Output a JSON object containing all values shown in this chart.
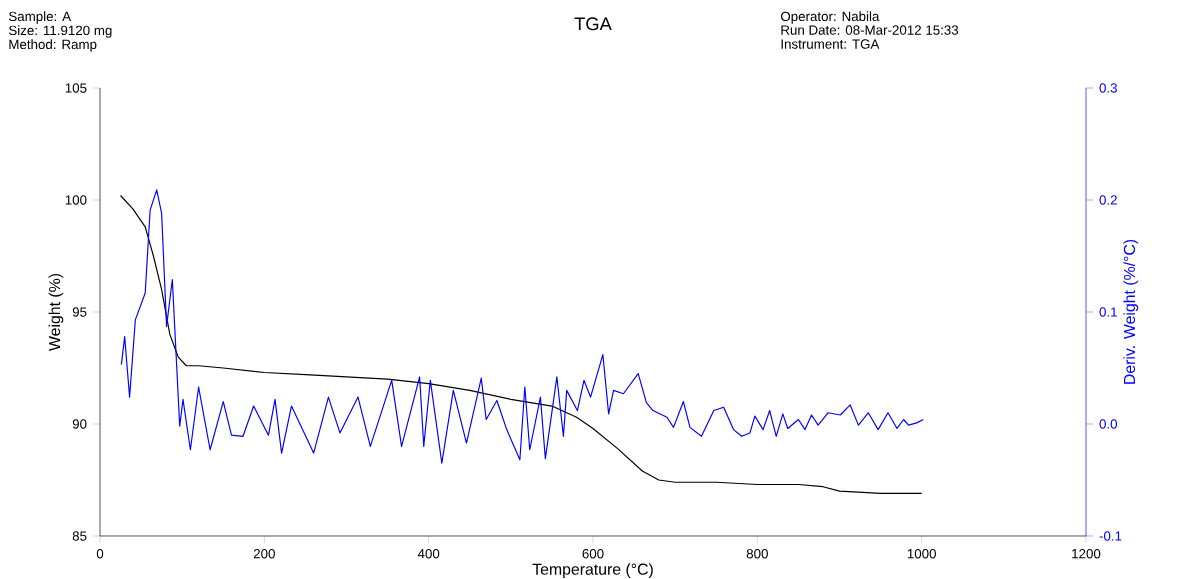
{
  "chart_data": {
    "type": "line",
    "title": "TGA",
    "xlabel": "Temperature (°C)",
    "ylabel": "Weight (%)",
    "y2label": "Deriv. Weight (%/°C)",
    "annotations": [
      "Sample: A",
      "Size:  11.9120 mg",
      "Method: Ramp",
      "Operator: Nabila",
      "Run Date: 08-Mar-2012 15:33",
      "Instrument: TGA"
    ],
    "xlim": [
      0,
      1200
    ],
    "xticks": [
      0,
      200,
      400,
      600,
      800,
      1000,
      1200
    ],
    "ylim": [
      85,
      105
    ],
    "yticks": [
      85,
      90,
      95,
      100,
      105
    ],
    "y2lim": [
      -0.1,
      0.3
    ],
    "y2ticks": [
      -0.1,
      {
        "value": 0,
        "label": "0.0"
      },
      0.1,
      0.2,
      0.3
    ],
    "series": [
      {
        "color": "#000000",
        "x": [
          25,
          40,
          55,
          65,
          75,
          85,
          95,
          105,
          120,
          150,
          200,
          250,
          300,
          350,
          400,
          450,
          500,
          550,
          580,
          600,
          630,
          660,
          680,
          700,
          750,
          800,
          850,
          880,
          900,
          950,
          1000
        ],
        "values": [
          100.2,
          99.6,
          98.8,
          97.5,
          96.0,
          94.0,
          93.0,
          92.6,
          92.6,
          92.5,
          92.3,
          92.2,
          92.1,
          92.0,
          91.8,
          91.5,
          91.1,
          90.8,
          90.3,
          89.8,
          88.9,
          87.9,
          87.5,
          87.4,
          87.4,
          87.3,
          87.3,
          87.2,
          87.0,
          86.9,
          86.9
        ]
      },
      {
        "color": "#0000ff",
        "axis": "y2",
        "x": [
          26,
          30,
          36,
          43,
          55,
          61,
          69,
          75,
          81,
          88,
          97,
          101,
          110,
          120,
          134,
          150,
          160,
          174,
          187,
          205,
          213,
          221,
          233,
          260,
          278,
          292,
          314,
          329,
          355,
          367,
          389,
          394,
          402,
          416,
          430,
          446,
          464,
          470,
          483,
          495,
          511,
          517,
          523,
          536,
          542,
          556,
          564,
          568,
          581,
          589,
          597,
          612,
          619,
          625,
          637,
          655,
          665,
          673,
          690,
          698,
          710,
          718,
          732,
          747,
          759,
          771,
          781,
          791,
          797,
          807,
          815,
          823,
          831,
          837,
          850,
          858,
          866,
          874,
          886,
          901,
          913,
          923,
          935,
          947,
          959,
          970,
          978,
          984,
          994,
          1002
        ],
        "values": [
          0.053,
          0.078,
          0.024,
          0.093,
          0.117,
          0.191,
          0.209,
          0.188,
          0.087,
          0.129,
          -0.002,
          0.022,
          -0.023,
          0.033,
          -0.023,
          0.02,
          -0.01,
          -0.011,
          0.016,
          -0.01,
          0.022,
          -0.026,
          0.016,
          -0.026,
          0.024,
          -0.008,
          0.024,
          -0.02,
          0.039,
          -0.02,
          0.042,
          -0.02,
          0.039,
          -0.035,
          0.03,
          -0.017,
          0.041,
          0.004,
          0.021,
          -0.005,
          -0.032,
          0.033,
          -0.023,
          0.024,
          -0.031,
          0.042,
          -0.011,
          0.03,
          0.012,
          0.039,
          0.024,
          0.062,
          0.009,
          0.03,
          0.027,
          0.045,
          0.019,
          0.012,
          0.006,
          -0.003,
          0.02,
          -0.003,
          -0.011,
          0.012,
          0.015,
          -0.005,
          -0.011,
          -0.008,
          0.007,
          -0.005,
          0.012,
          -0.011,
          0.009,
          -0.004,
          0.004,
          -0.005,
          0.008,
          -0.001,
          0.01,
          0.008,
          0.017,
          -0.001,
          0.01,
          -0.005,
          0.01,
          -0.004,
          0.004,
          -0.001,
          0.001,
          0.004
        ]
      }
    ]
  }
}
